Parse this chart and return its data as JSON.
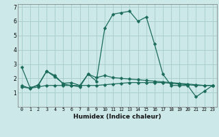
{
  "xlabel": "Humidex (Indice chaleur)",
  "bg_color": "#cce8e8",
  "grid_color": "#aacfcf",
  "line_color": "#1a6b5a",
  "xlim": [
    -0.5,
    23.5
  ],
  "ylim": [
    0.0,
    7.2
  ],
  "yticks": [
    1,
    2,
    3,
    4,
    5,
    6,
    7
  ],
  "xticks": [
    0,
    1,
    2,
    3,
    4,
    5,
    6,
    7,
    8,
    9,
    10,
    11,
    12,
    13,
    14,
    15,
    16,
    17,
    18,
    19,
    20,
    21,
    22,
    23
  ],
  "line1_x": [
    0,
    1,
    2,
    3,
    4,
    5,
    6,
    7,
    8,
    9,
    10,
    11,
    12,
    13,
    14,
    15,
    16,
    17,
    18,
    19,
    20,
    21,
    22,
    23
  ],
  "line1_y": [
    2.8,
    1.35,
    1.5,
    2.5,
    2.2,
    1.6,
    1.5,
    1.4,
    2.3,
    1.8,
    5.5,
    6.5,
    6.6,
    6.7,
    6.0,
    6.3,
    4.4,
    2.3,
    1.5,
    1.5,
    1.5,
    0.7,
    1.1,
    1.5
  ],
  "line2_x": [
    0,
    1,
    2,
    3,
    4,
    5,
    6,
    7,
    8,
    9,
    10,
    11,
    12,
    13,
    14,
    15,
    16,
    17,
    18,
    19,
    20,
    21,
    22,
    23
  ],
  "line2_y": [
    1.5,
    1.3,
    1.55,
    2.5,
    2.1,
    1.65,
    1.7,
    1.5,
    2.3,
    2.05,
    2.2,
    2.05,
    2.0,
    1.95,
    1.9,
    1.85,
    1.8,
    1.75,
    1.7,
    1.65,
    1.6,
    1.55,
    1.5,
    1.5
  ],
  "line3_x": [
    0,
    1,
    2,
    3,
    4,
    5,
    6,
    7,
    8,
    9,
    10,
    11,
    12,
    13,
    14,
    15,
    16,
    17,
    18,
    19,
    20,
    21,
    22,
    23
  ],
  "line3_y": [
    1.4,
    1.3,
    1.4,
    1.5,
    1.5,
    1.5,
    1.5,
    1.5,
    1.5,
    1.5,
    1.55,
    1.6,
    1.65,
    1.7,
    1.7,
    1.7,
    1.7,
    1.7,
    1.65,
    1.6,
    1.55,
    1.5,
    1.5,
    1.5
  ]
}
